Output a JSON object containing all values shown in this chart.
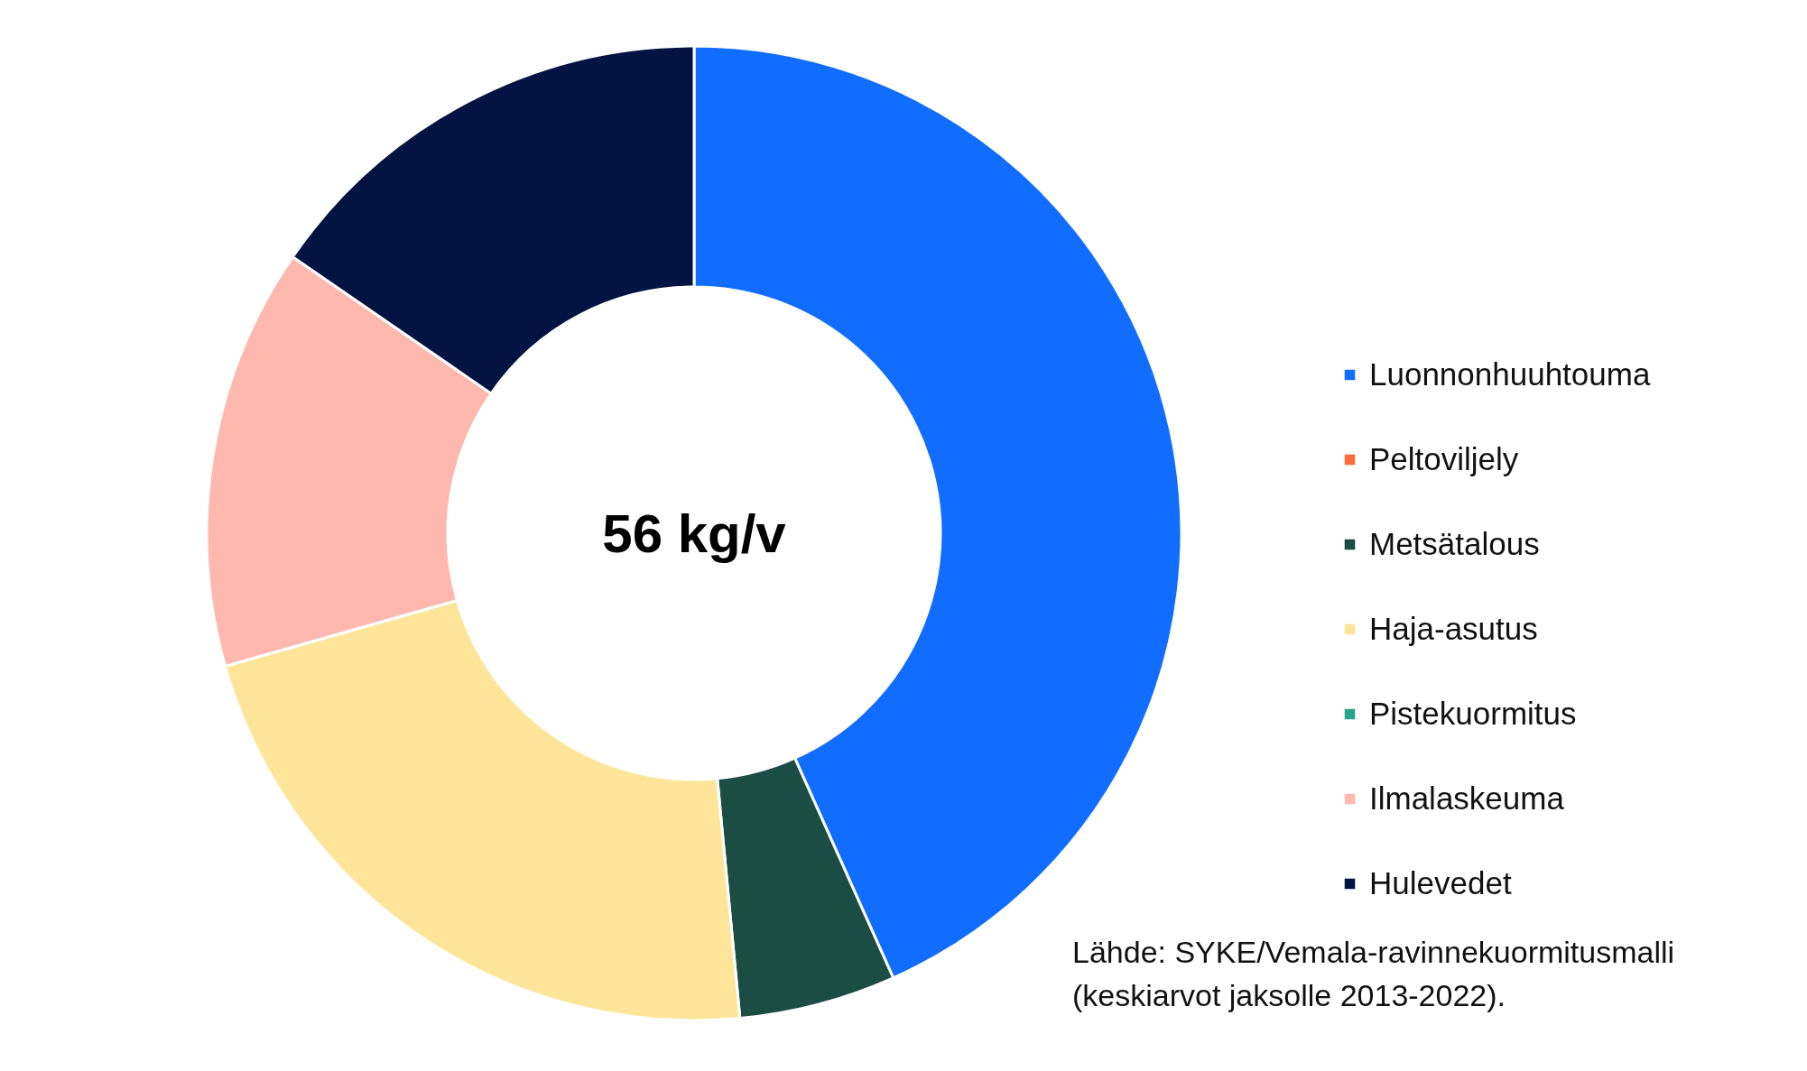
{
  "chart_data": {
    "type": "donut",
    "categories": [
      "Luonnonhuuhtouma",
      "Peltoviljely",
      "Metsätalous",
      "Haja-asutus",
      "Pistekuormitus",
      "Ilmalaskeuma",
      "Hulevedet"
    ],
    "values": [
      43.3,
      0,
      5.2,
      22.1,
      0,
      14.0,
      15.4
    ],
    "colors": [
      "#116dff",
      "#ff6a3d",
      "#1b4d45",
      "#fee59a",
      "#26a48c",
      "#ffb8ae",
      "#031442"
    ],
    "legend": "right",
    "annotations": [
      "56 kg/v",
      "Lähde: SYKE/Vemala-ravinnekuormitusmalli",
      "(keskiarvot jaksolle 2013-2022)."
    ]
  }
}
